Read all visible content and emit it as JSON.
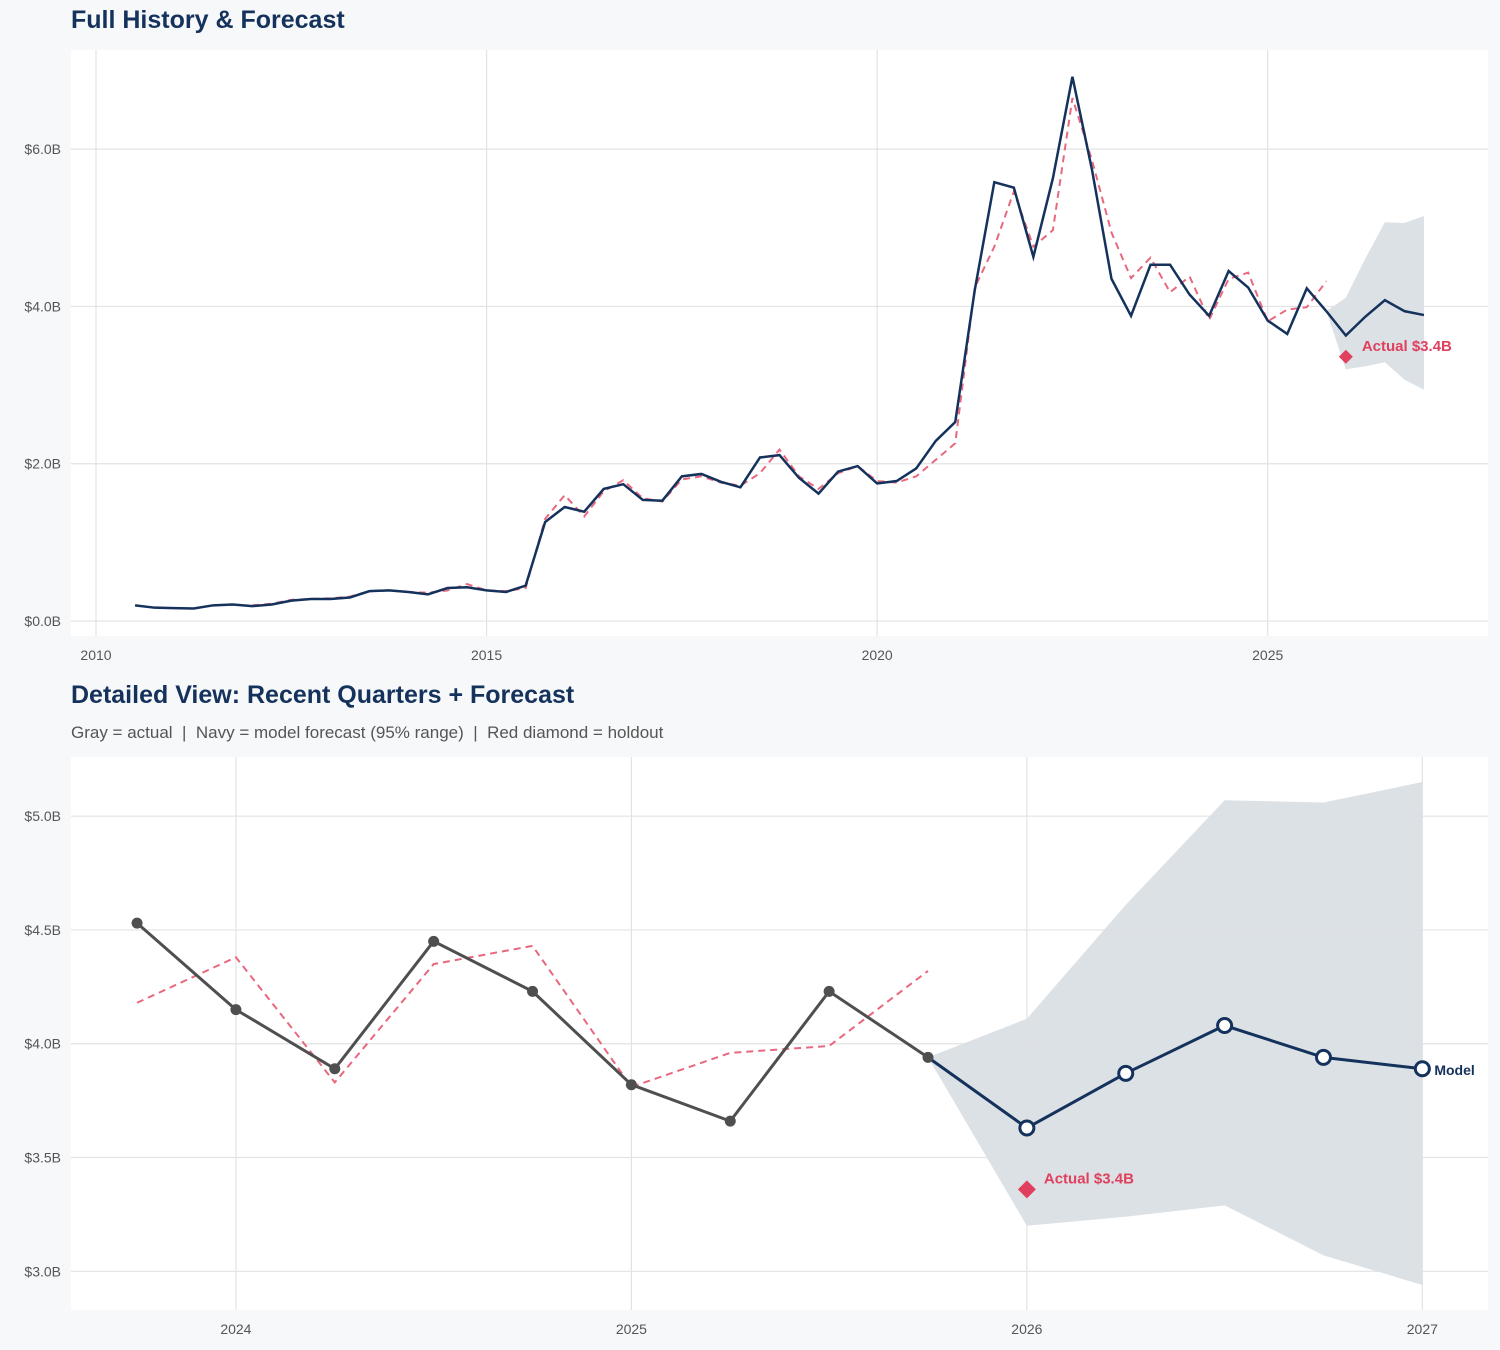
{
  "chart_data": [
    {
      "type": "line",
      "title": "Full History & Forecast",
      "xlim": [
        2009.68,
        2027.82
      ],
      "ylim": [
        -0.19,
        7.26
      ],
      "x_ticks": [
        2010,
        2015,
        2020,
        2025
      ],
      "x_tick_labels": [
        "2010",
        "2015",
        "2020",
        "2025"
      ],
      "y_ticks": [
        0,
        2,
        4,
        6
      ],
      "y_tick_labels": [
        "$0.0B",
        "$2.0B",
        "$4.0B",
        "$6.0B"
      ],
      "grid": true,
      "colors": {
        "actual": "#14325c",
        "fitted": "#e8687f",
        "band": "#dadfe5",
        "holdout": "#e0405e"
      },
      "actual": {
        "start": 2010.5,
        "step": 0.25,
        "values": [
          0.2,
          0.17,
          0.165,
          0.16,
          0.2,
          0.21,
          0.19,
          0.21,
          0.26,
          0.28,
          0.28,
          0.3,
          0.38,
          0.39,
          0.37,
          0.34,
          0.42,
          0.43,
          0.39,
          0.37,
          0.45,
          1.26,
          1.45,
          1.39,
          1.68,
          1.74,
          1.54,
          1.53,
          1.84,
          1.87,
          1.77,
          1.7,
          2.08,
          2.11,
          1.82,
          1.62,
          1.9,
          1.97,
          1.75,
          1.78,
          1.94,
          2.29,
          2.53,
          4.21,
          5.58,
          5.51,
          4.63,
          5.63,
          6.92,
          5.74,
          4.35,
          3.88,
          4.53,
          4.53,
          4.15,
          3.88,
          4.45,
          4.24,
          3.82,
          3.65,
          4.23,
          3.94
        ]
      },
      "fitted": {
        "start": 2012.0,
        "step": 0.25,
        "values": [
          0.2,
          0.22,
          0.27,
          0.28,
          0.29,
          0.31,
          0.38,
          0.39,
          0.37,
          0.36,
          0.39,
          0.47,
          0.39,
          0.38,
          0.42,
          1.3,
          1.6,
          1.33,
          1.65,
          1.79,
          1.56,
          1.52,
          1.8,
          1.84,
          1.76,
          1.72,
          1.88,
          2.18,
          1.84,
          1.68,
          1.88,
          1.97,
          1.78,
          1.76,
          1.84,
          2.05,
          2.26,
          4.24,
          4.76,
          5.46,
          4.76,
          4.97,
          6.65,
          5.86,
          4.94,
          4.36,
          4.62,
          4.18,
          4.38,
          3.83,
          4.35,
          4.43,
          3.81,
          3.96,
          3.99,
          4.32
        ]
      },
      "forecast": {
        "x": [
          2025.75,
          2026.0,
          2026.25,
          2026.5,
          2026.75,
          2027.0
        ],
        "values": [
          3.94,
          3.63,
          3.87,
          4.08,
          3.94,
          3.89
        ]
      },
      "band": {
        "x": [
          2025.75,
          2026.0,
          2026.25,
          2026.5,
          2026.75,
          2027.0
        ],
        "upper": [
          3.94,
          4.11,
          4.61,
          5.07,
          5.06,
          5.15
        ],
        "lower": [
          3.94,
          3.2,
          3.24,
          3.29,
          3.07,
          2.94
        ]
      },
      "holdout": {
        "x": 2026.0,
        "value": 3.36,
        "label": "Actual $3.4B"
      }
    },
    {
      "type": "line",
      "title": "Detailed View: Recent Quarters + Forecast",
      "subtitle": "Gray = actual  |  Navy = model forecast (95% range)  |  Red diamond = holdout",
      "xlim": [
        2023.583,
        2027.166
      ],
      "ylim": [
        2.83,
        5.26
      ],
      "x_ticks": [
        2024,
        2025,
        2026,
        2027
      ],
      "x_tick_labels": [
        "2024",
        "2025",
        "2026",
        "2027"
      ],
      "y_ticks": [
        3.0,
        3.5,
        4.0,
        4.5,
        5.0
      ],
      "y_tick_labels": [
        "$3.0B",
        "$3.5B",
        "$4.0B",
        "$4.5B",
        "$5.0B"
      ],
      "grid": true,
      "colors": {
        "actual": "#4f4f4f",
        "forecast": "#14325c",
        "fitted": "#e8687f",
        "band": "#dadfe5",
        "holdout": "#e0405e"
      },
      "actual": {
        "x": [
          2023.75,
          2024.0,
          2024.25,
          2024.5,
          2024.75,
          2025.0,
          2025.25,
          2025.5,
          2025.75
        ],
        "values": [
          4.53,
          4.15,
          3.89,
          4.45,
          4.23,
          3.82,
          3.66,
          4.23,
          3.94
        ]
      },
      "fitted": {
        "x": [
          2023.75,
          2024.0,
          2024.25,
          2024.5,
          2024.75,
          2025.0,
          2025.25,
          2025.5,
          2025.75
        ],
        "values": [
          4.18,
          4.38,
          3.83,
          4.35,
          4.43,
          3.81,
          3.96,
          3.99,
          4.32
        ]
      },
      "forecast": {
        "x": [
          2025.75,
          2026.0,
          2026.25,
          2026.5,
          2026.75,
          2027.0
        ],
        "values": [
          3.94,
          3.63,
          3.87,
          4.08,
          3.94,
          3.89
        ],
        "label": "Model"
      },
      "band": {
        "x": [
          2025.75,
          2026.0,
          2026.25,
          2026.5,
          2026.75,
          2027.0
        ],
        "upper": [
          3.94,
          4.11,
          4.61,
          5.07,
          5.06,
          5.15
        ],
        "lower": [
          3.94,
          3.2,
          3.24,
          3.29,
          3.07,
          2.94
        ]
      },
      "holdout": {
        "x": 2026.0,
        "value": 3.36,
        "label": "Actual $3.4B"
      }
    }
  ]
}
